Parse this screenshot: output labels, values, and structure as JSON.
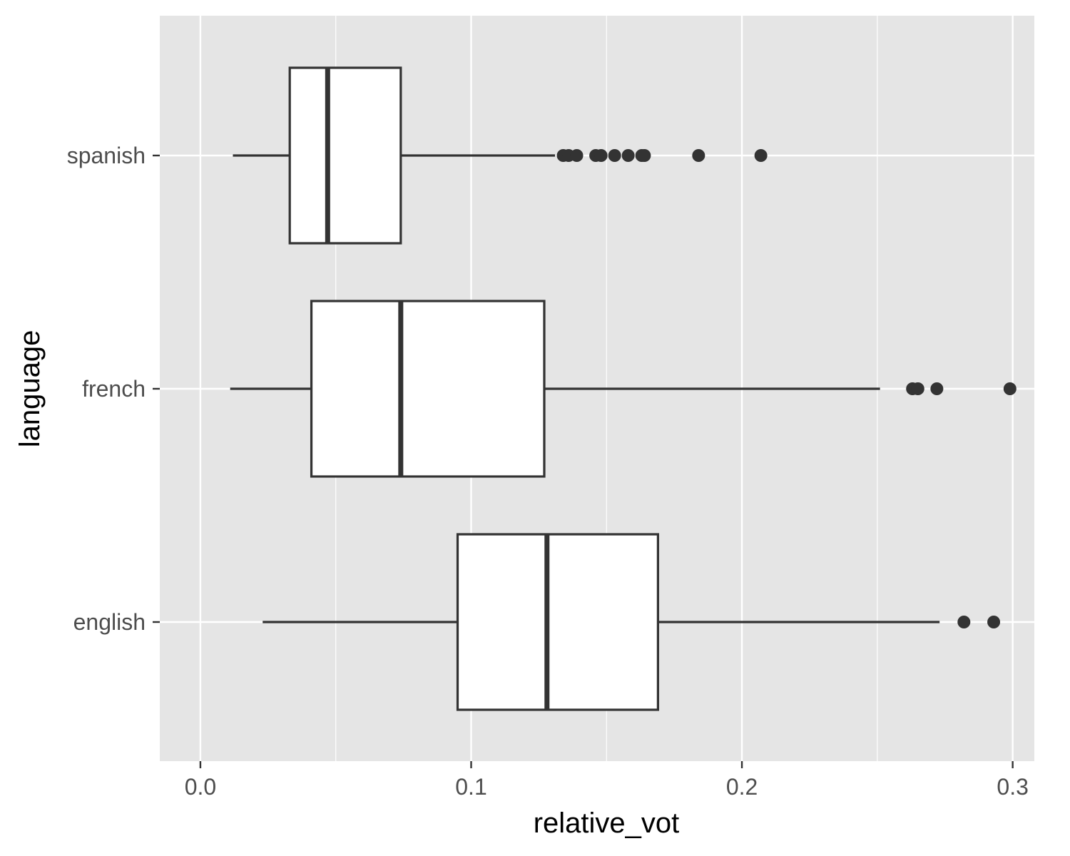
{
  "chart_data": {
    "type": "boxplot",
    "orientation": "horizontal",
    "xlabel": "relative_vot",
    "ylabel": "language",
    "xlim": [
      -0.015,
      0.308
    ],
    "xticks": [
      0.0,
      0.1,
      0.2,
      0.3
    ],
    "xtick_labels": [
      "0.0",
      "0.1",
      "0.2",
      "0.3"
    ],
    "grid": true,
    "categories": [
      "spanish",
      "french",
      "english"
    ],
    "boxes": [
      {
        "category": "spanish",
        "whisker_low": 0.012,
        "q1": 0.033,
        "median": 0.047,
        "q3": 0.074,
        "whisker_high": 0.131,
        "outliers": [
          0.134,
          0.136,
          0.139,
          0.146,
          0.148,
          0.153,
          0.158,
          0.163,
          0.164,
          0.184,
          0.207
        ]
      },
      {
        "category": "french",
        "whisker_low": 0.011,
        "q1": 0.041,
        "median": 0.074,
        "q3": 0.127,
        "whisker_high": 0.251,
        "outliers": [
          0.263,
          0.265,
          0.272,
          0.299
        ]
      },
      {
        "category": "english",
        "whisker_low": 0.023,
        "q1": 0.095,
        "median": 0.128,
        "q3": 0.169,
        "whisker_high": 0.273,
        "outliers": [
          0.282,
          0.293
        ]
      }
    ]
  }
}
